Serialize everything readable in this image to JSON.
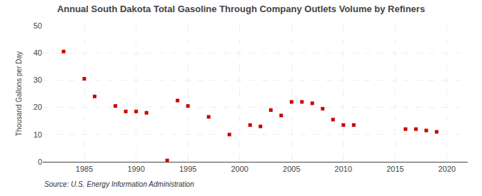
{
  "chart_data": {
    "type": "scatter",
    "title": "Annual South Dakota Total Gasoline Through Company Outlets Volume by Refiners",
    "ylabel": "Thousand Gallons per Day",
    "annotations": [
      "Source: U.S. Energy Information Administration"
    ],
    "x": [
      1983,
      1985,
      1986,
      1988,
      1989,
      1990,
      1991,
      1993,
      1994,
      1995,
      1997,
      1999,
      2001,
      2002,
      2003,
      2004,
      2005,
      2006,
      2007,
      2008,
      2009,
      2010,
      2011,
      2016,
      2017,
      2018,
      2019
    ],
    "values": [
      40.5,
      30.5,
      24.0,
      20.5,
      18.5,
      18.5,
      18.0,
      0.5,
      22.5,
      20.5,
      16.5,
      10.0,
      13.5,
      13.0,
      19.0,
      17.0,
      22.0,
      22.0,
      21.5,
      19.5,
      15.5,
      13.5,
      13.5,
      12.0,
      12.0,
      11.5,
      11.0
    ],
    "color": "#cc0000",
    "marker": "square",
    "xlim": [
      1981,
      2022
    ],
    "xticks": [
      1985,
      1990,
      1995,
      2000,
      2005,
      2010,
      2015,
      2020
    ],
    "ylim": [
      0,
      50
    ],
    "yticks": [
      0,
      10,
      20,
      30,
      40,
      50
    ],
    "grid": true
  }
}
